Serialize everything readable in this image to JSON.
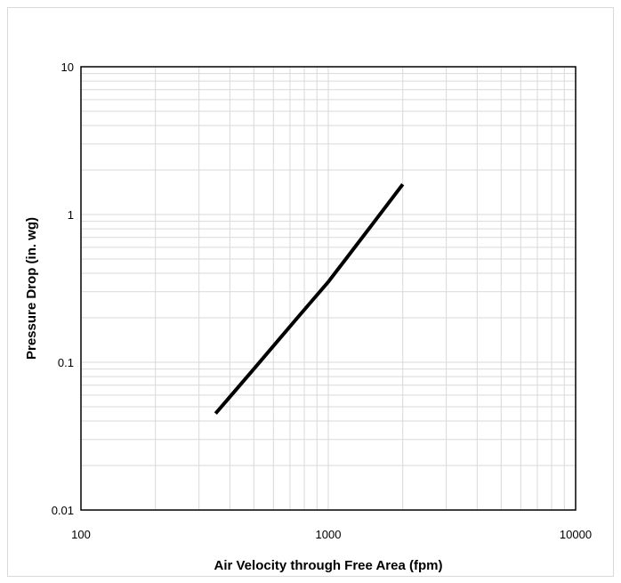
{
  "chart_data": {
    "type": "line",
    "xlabel": "Air Velocity through Free Area (fpm)",
    "ylabel": "Pressure Drop (in. wg)",
    "x_scale": "log",
    "y_scale": "log",
    "xlim": [
      100,
      10000
    ],
    "ylim": [
      0.01,
      10
    ],
    "x_ticks": [
      "100",
      "1000",
      "10000"
    ],
    "y_ticks": [
      "0.01",
      "0.1",
      "1",
      "10"
    ],
    "grid": true,
    "legend": "none",
    "series": [
      {
        "x": [
          350,
          500,
          750,
          1000,
          1500,
          2000
        ],
        "y": [
          0.045,
          0.09,
          0.2,
          0.35,
          0.85,
          1.6
        ],
        "color": "#000000"
      }
    ],
    "colors": {
      "grid_minor": "#d9d9d9",
      "grid_major": "#bfbfbf",
      "line": "#000000"
    }
  }
}
